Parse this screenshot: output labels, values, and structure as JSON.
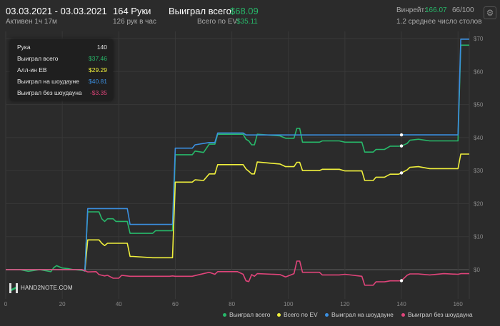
{
  "header": {
    "date_range": "03.03.2021 - 03.03.2021",
    "active": "Активен 1ч 17м",
    "hands": "164 Руки",
    "hands_per_hour": "126 рук в час",
    "won_total_label": "Выиграл всего:",
    "won_total_value": "$68.09",
    "ev_total_label": "Всего по EV:",
    "ev_total_value": "$35.11",
    "winrate_label": "Винрейт:",
    "winrate_value": "166.07",
    "winrate_rest": "66/100",
    "avg_tables": "1.2 среднее число столов"
  },
  "settings_icon": "gear-icon",
  "tooltip": {
    "hand_label": "Рука",
    "hand_value": "140",
    "rows": [
      {
        "label": "Выиграл всего",
        "value": "$37.46",
        "color": "#27b86a"
      },
      {
        "label": "Алл-ин EB",
        "value": "$29.29",
        "color": "#f0f03c"
      },
      {
        "label": "Выиграл на шоудауне",
        "value": "$40.81",
        "color": "#3b8fe0"
      },
      {
        "label": "Выиграл без шоудауна",
        "value": "-$3.35",
        "color": "#e0447a"
      }
    ]
  },
  "logo": {
    "text": "HAND2NOTE.COM"
  },
  "chart_data": {
    "type": "line",
    "xlim": [
      0,
      164
    ],
    "ylim": [
      -8,
      72
    ],
    "x_ticks": [
      0,
      20,
      40,
      60,
      80,
      100,
      120,
      140,
      160
    ],
    "y_ticks": [
      0,
      10,
      20,
      30,
      40,
      50,
      60,
      70
    ],
    "y_tick_labels": [
      "$0",
      "$10",
      "$20",
      "$30",
      "$40",
      "$50",
      "$60",
      "$70"
    ],
    "grid": true,
    "legend_position": "bottom-right",
    "marker_x": 140,
    "series": [
      {
        "name": "Выиграл всего",
        "color": "#27b86a",
        "points": [
          [
            0,
            0
          ],
          [
            5,
            0
          ],
          [
            8,
            -0.5
          ],
          [
            12,
            0
          ],
          [
            16,
            -0.6
          ],
          [
            17,
            0.6
          ],
          [
            18,
            1.2
          ],
          [
            20,
            0.5
          ],
          [
            22,
            0.3
          ],
          [
            24,
            0
          ],
          [
            27,
            -0.2
          ],
          [
            28,
            -0.4
          ],
          [
            29,
            17.5
          ],
          [
            33,
            17.5
          ],
          [
            34,
            15.4
          ],
          [
            35,
            14.6
          ],
          [
            36,
            15.4
          ],
          [
            38,
            15.4
          ],
          [
            39,
            14.6
          ],
          [
            41,
            14.6
          ],
          [
            43,
            14.6
          ],
          [
            44,
            11
          ],
          [
            52,
            11
          ],
          [
            53,
            11.8
          ],
          [
            58,
            11.8
          ],
          [
            59,
            11.8
          ],
          [
            60,
            34.8
          ],
          [
            66,
            34.8
          ],
          [
            67,
            35.9
          ],
          [
            70,
            35.5
          ],
          [
            72,
            38
          ],
          [
            74,
            38
          ],
          [
            75,
            41
          ],
          [
            84,
            41
          ],
          [
            85,
            39.5
          ],
          [
            86,
            39
          ],
          [
            87,
            37.8
          ],
          [
            88,
            37.8
          ],
          [
            89,
            41
          ],
          [
            97,
            40.5
          ],
          [
            99,
            39.8
          ],
          [
            102,
            39.8
          ],
          [
            103,
            42.8
          ],
          [
            104,
            42.8
          ],
          [
            105,
            38.6
          ],
          [
            111,
            38.6
          ],
          [
            112,
            39
          ],
          [
            118,
            39
          ],
          [
            120,
            38.6
          ],
          [
            126,
            38.6
          ],
          [
            127,
            35.6
          ],
          [
            130,
            35.6
          ],
          [
            131,
            36.4
          ],
          [
            134,
            36.4
          ],
          [
            136,
            37.4
          ],
          [
            139,
            37.4
          ],
          [
            140,
            37.46
          ],
          [
            142,
            38.2
          ],
          [
            143,
            39.2
          ],
          [
            146,
            39.5
          ],
          [
            150,
            39
          ],
          [
            155,
            39
          ],
          [
            160,
            39
          ],
          [
            161,
            68
          ],
          [
            164,
            68
          ]
        ]
      },
      {
        "name": "Всего по EV",
        "color": "#f0f03c",
        "points": [
          [
            0,
            0
          ],
          [
            27,
            0
          ],
          [
            28,
            -0.4
          ],
          [
            29,
            9
          ],
          [
            33,
            9
          ],
          [
            34,
            8
          ],
          [
            35,
            7.3
          ],
          [
            36,
            8
          ],
          [
            43,
            8
          ],
          [
            44,
            4
          ],
          [
            45,
            4
          ],
          [
            52,
            3.6
          ],
          [
            53,
            3.6
          ],
          [
            59,
            3.6
          ],
          [
            60,
            26.5
          ],
          [
            66,
            26.5
          ],
          [
            67,
            27.2
          ],
          [
            70,
            27
          ],
          [
            72,
            29
          ],
          [
            74,
            29
          ],
          [
            75,
            31.8
          ],
          [
            84,
            31.8
          ],
          [
            85,
            30.5
          ],
          [
            86,
            29.8
          ],
          [
            87,
            29
          ],
          [
            88,
            29
          ],
          [
            89,
            32.6
          ],
          [
            97,
            32
          ],
          [
            99,
            31.2
          ],
          [
            102,
            31.2
          ],
          [
            103,
            32.5
          ],
          [
            104,
            32.5
          ],
          [
            105,
            30
          ],
          [
            111,
            30
          ],
          [
            112,
            30.4
          ],
          [
            118,
            30.4
          ],
          [
            120,
            29.9
          ],
          [
            126,
            29.9
          ],
          [
            127,
            27
          ],
          [
            130,
            27
          ],
          [
            131,
            28
          ],
          [
            134,
            28
          ],
          [
            136,
            28.9
          ],
          [
            139,
            28.9
          ],
          [
            140,
            29.29
          ],
          [
            142,
            30.2
          ],
          [
            143,
            31
          ],
          [
            146,
            31.2
          ],
          [
            150,
            30.6
          ],
          [
            155,
            30.6
          ],
          [
            160,
            30.6
          ],
          [
            161,
            35
          ],
          [
            164,
            35
          ]
        ]
      },
      {
        "name": "Выиграл на шоудауне",
        "color": "#3b8fe0",
        "points": [
          [
            0,
            0
          ],
          [
            27,
            0
          ],
          [
            28,
            -0.4
          ],
          [
            29,
            18.5
          ],
          [
            43,
            18.5
          ],
          [
            44,
            13.7
          ],
          [
            52,
            13.7
          ],
          [
            58,
            13.7
          ],
          [
            59,
            13.7
          ],
          [
            60,
            36.8
          ],
          [
            66,
            36.8
          ],
          [
            67,
            37.8
          ],
          [
            72,
            38.5
          ],
          [
            74,
            38.5
          ],
          [
            75,
            41.4
          ],
          [
            84,
            41.4
          ],
          [
            85,
            40.8
          ],
          [
            140,
            40.81
          ],
          [
            160,
            40.81
          ],
          [
            161,
            69.8
          ],
          [
            164,
            69.8
          ]
        ]
      },
      {
        "name": "Выиграл без шоудауна",
        "color": "#e0447a",
        "points": [
          [
            0,
            0
          ],
          [
            27,
            0
          ],
          [
            28,
            -0.3
          ],
          [
            29,
            -0.7
          ],
          [
            32,
            -0.6
          ],
          [
            33,
            -1.5
          ],
          [
            35,
            -1.9
          ],
          [
            36,
            -1.7
          ],
          [
            38,
            -2.6
          ],
          [
            40,
            -2.6
          ],
          [
            41,
            -1.7
          ],
          [
            44,
            -2
          ],
          [
            52,
            -2
          ],
          [
            58,
            -2
          ],
          [
            59,
            -1.9
          ],
          [
            60,
            -2
          ],
          [
            66,
            -2
          ],
          [
            67,
            -1.8
          ],
          [
            72,
            -0.8
          ],
          [
            74,
            -1.4
          ],
          [
            75,
            -0.6
          ],
          [
            82,
            -0.6
          ],
          [
            84,
            -1.4
          ],
          [
            85,
            -3.4
          ],
          [
            86,
            -3.6
          ],
          [
            87,
            -1.5
          ],
          [
            88,
            -2
          ],
          [
            89,
            -1.2
          ],
          [
            97,
            -1.5
          ],
          [
            99,
            -2.2
          ],
          [
            102,
            -1.2
          ],
          [
            103,
            2.6
          ],
          [
            104,
            2.6
          ],
          [
            105,
            -0.8
          ],
          [
            111,
            -0.8
          ],
          [
            112,
            -1.6
          ],
          [
            118,
            -1.6
          ],
          [
            120,
            -1.4
          ],
          [
            126,
            -2
          ],
          [
            127,
            -4.7
          ],
          [
            130,
            -4.7
          ],
          [
            131,
            -3.7
          ],
          [
            134,
            -3.7
          ],
          [
            136,
            -3.4
          ],
          [
            139,
            -3.4
          ],
          [
            140,
            -3.35
          ],
          [
            142,
            -1.7
          ],
          [
            143,
            -1.3
          ],
          [
            146,
            -1.3
          ],
          [
            150,
            -1.6
          ],
          [
            155,
            -1.2
          ],
          [
            160,
            -1.4
          ],
          [
            161,
            -1.2
          ],
          [
            164,
            -1.2
          ]
        ]
      }
    ]
  }
}
